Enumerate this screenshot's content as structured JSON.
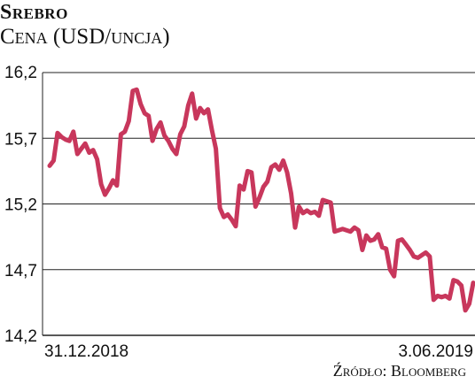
{
  "chart_data": {
    "type": "line",
    "title": "Srebro",
    "subtitle": "Cena (USD/uncja)",
    "source": "Źródło: Bloomberg",
    "y_ticks": [
      "16,2",
      "15,7",
      "15,2",
      "14,7",
      "14,2"
    ],
    "y_tick_values": [
      16.2,
      15.7,
      15.2,
      14.7,
      14.2
    ],
    "ylim": [
      14.2,
      16.2
    ],
    "x_labels": [
      "31.12.2018",
      "3.06.2019"
    ],
    "grid": true,
    "line_color": "#c8375c",
    "series": [
      {
        "values": [
          15.49,
          15.53,
          15.74,
          15.71,
          15.69,
          15.68,
          15.75,
          15.58,
          15.62,
          15.66,
          15.59,
          15.61,
          15.54,
          15.35,
          15.27,
          15.32,
          15.38,
          15.34,
          15.73,
          15.75,
          15.83,
          16.06,
          16.07,
          15.96,
          15.89,
          15.87,
          15.68,
          15.77,
          15.82,
          15.72,
          15.68,
          15.62,
          15.58,
          15.73,
          15.79,
          15.95,
          16.04,
          15.85,
          15.93,
          15.89,
          15.92,
          15.76,
          15.62,
          15.17,
          15.1,
          15.12,
          15.08,
          15.03,
          15.34,
          15.31,
          15.45,
          15.44,
          15.18,
          15.25,
          15.33,
          15.37,
          15.48,
          15.5,
          15.46,
          15.53,
          15.44,
          15.28,
          15.02,
          15.18,
          15.13,
          15.15,
          15.13,
          15.14,
          15.11,
          15.23,
          15.22,
          15.21,
          14.99,
          15.0,
          15.01,
          15.0,
          14.99,
          15.02,
          15.0,
          14.85,
          14.96,
          14.92,
          14.93,
          14.97,
          14.87,
          14.86,
          14.7,
          14.65,
          14.92,
          14.93,
          14.89,
          14.85,
          14.8,
          14.79,
          14.81,
          14.83,
          14.8,
          14.47,
          14.5,
          14.49,
          14.5,
          14.48,
          14.62,
          14.61,
          14.58,
          14.39,
          14.44,
          14.6
        ]
      }
    ]
  }
}
